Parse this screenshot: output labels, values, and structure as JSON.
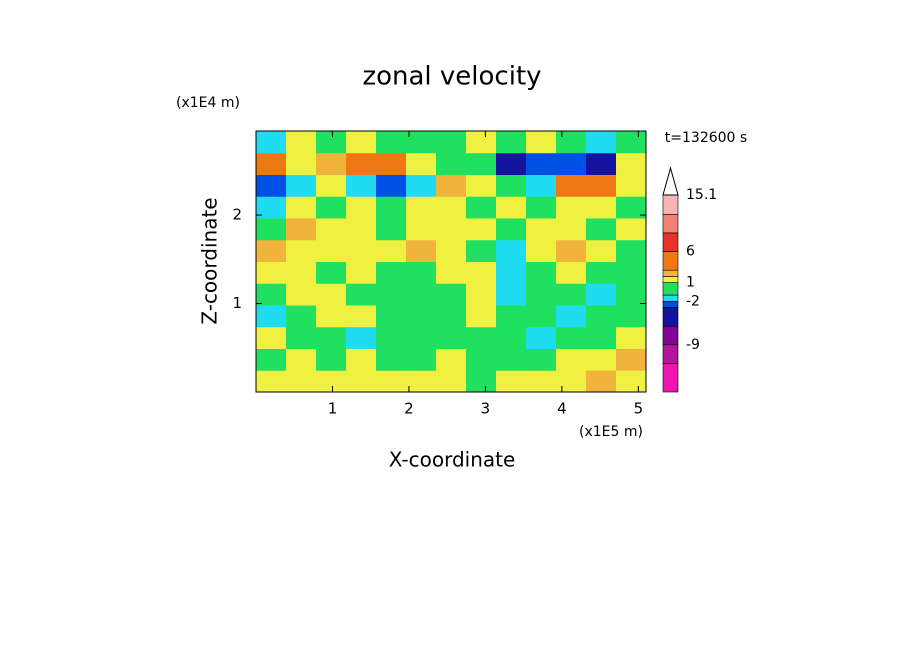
{
  "chart_data": {
    "type": "contour",
    "title": "zonal velocity",
    "x_label": "X-coordinate",
    "y_label": "Z-coordinate",
    "x_unit": "(x1E5 m)",
    "y_unit": "(x1E4 m)",
    "annotation": "t=132600 s",
    "xlim": [
      0,
      5.1
    ],
    "ylim": [
      0,
      2.95
    ],
    "xticks": [
      1,
      2,
      3,
      4,
      5
    ],
    "yticks": [
      1,
      2
    ],
    "z": [
      [
        1.5,
        1.5,
        1.5,
        1.5,
        1.5,
        1.5,
        1.5,
        0,
        1.5,
        1.5,
        1.5,
        2.5,
        1.5
      ],
      [
        0,
        1.5,
        0,
        1.5,
        0,
        0,
        1.5,
        0,
        0,
        0,
        1.5,
        1.5,
        2.5
      ],
      [
        1.5,
        0,
        0,
        -1.5,
        0,
        0,
        0,
        0,
        0,
        -1.5,
        0,
        0,
        1.5
      ],
      [
        -1.5,
        0,
        1.5,
        1.5,
        0,
        0,
        0,
        1.5,
        0,
        0,
        -1.5,
        0,
        0
      ],
      [
        0,
        1.5,
        1.5,
        0,
        0,
        0,
        0,
        1.5,
        -1.5,
        0,
        0,
        -1.5,
        0
      ],
      [
        1.5,
        1.5,
        0,
        1.5,
        0,
        0,
        1.5,
        1.5,
        -1.5,
        0,
        1.5,
        0,
        0
      ],
      [
        2.5,
        1.5,
        1.5,
        1.5,
        1.5,
        2.5,
        1.5,
        0,
        -1.5,
        1.5,
        2.5,
        1.5,
        0
      ],
      [
        0,
        2.5,
        1.5,
        1.5,
        0,
        1.5,
        1.5,
        1.5,
        0,
        1.5,
        1.5,
        0,
        1.5
      ],
      [
        -1.5,
        1.5,
        0,
        1.5,
        0,
        1.5,
        1.5,
        0,
        1.5,
        0,
        1.5,
        1.5,
        0
      ],
      [
        -2.5,
        -1.5,
        1.5,
        -1.5,
        -2.5,
        -1.5,
        2.5,
        1.5,
        0,
        -1.5,
        4.5,
        4.5,
        1.5
      ],
      [
        4.5,
        1.5,
        2.5,
        4.5,
        4.5,
        1.5,
        0,
        0,
        -4.5,
        -2.5,
        -2.5,
        -4.5,
        1.5
      ],
      [
        -1.5,
        1.5,
        0,
        1.5,
        0,
        0,
        0,
        1.5,
        0,
        1.5,
        0,
        -1.5,
        0
      ]
    ],
    "colorbar": {
      "levels": [
        -16.6,
        -12,
        -9,
        -6,
        -3,
        -2,
        -1,
        1,
        2,
        3,
        6,
        9,
        12,
        15.1
      ],
      "colors": [
        "#f014b4",
        "#b414a0",
        "#820096",
        "#1414a0",
        "#0050e6",
        "#20dcf0",
        "#20e060",
        "#f0f040",
        "#f0b43c",
        "#f07814",
        "#e63228",
        "#f08070",
        "#f8b4b4"
      ],
      "ticks": [
        -9,
        -2,
        1,
        6,
        15.1
      ],
      "extend": "max"
    }
  }
}
